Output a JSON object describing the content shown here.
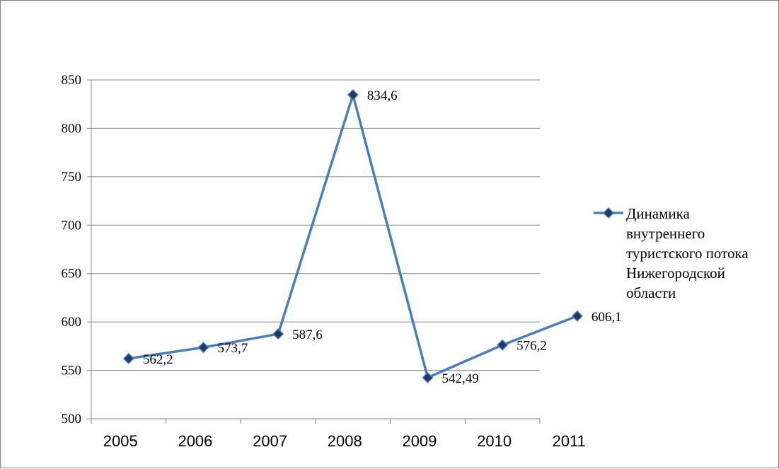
{
  "chart_data": {
    "type": "line",
    "title": "",
    "xlabel": "",
    "ylabel": "",
    "ylim": [
      500,
      850
    ],
    "y_ticks": [
      "500",
      "550",
      "600",
      "650",
      "700",
      "750",
      "800",
      "850"
    ],
    "x_tick_labels": [
      "2005",
      "2006",
      "2007",
      "2008",
      "2009",
      "2010",
      "2011"
    ],
    "grid": "horizontal",
    "legend_position": "right",
    "series": [
      {
        "name": "Динамика внутреннего туристского потока Нижегородской области",
        "legend_lines": [
          "Динамика",
          "внутреннего",
          "туристского потока",
          "Нижегородской",
          "области"
        ],
        "color": "#4a7ebb",
        "marker_color": "#1f3864",
        "values": [
          562.2,
          573.7,
          587.6,
          834.6,
          542.49,
          576.2,
          606.1
        ],
        "data_labels": [
          "562,2",
          "573,7",
          "587,6",
          "834,6",
          "542,49",
          "576,2",
          "606,1"
        ]
      }
    ]
  }
}
